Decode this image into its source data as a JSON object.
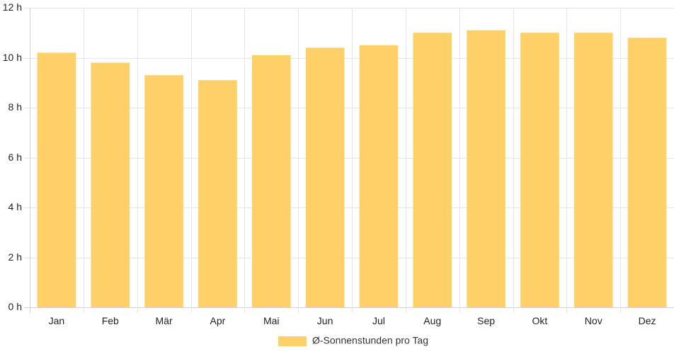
{
  "chart_data": {
    "type": "bar",
    "categories": [
      "Jan",
      "Feb",
      "Mär",
      "Apr",
      "Mai",
      "Jun",
      "Jul",
      "Aug",
      "Sep",
      "Okt",
      "Nov",
      "Dez"
    ],
    "series": [
      {
        "name": "Ø-Sonnenstunden pro Tag",
        "values": [
          10.2,
          9.8,
          9.3,
          9.1,
          10.1,
          10.4,
          10.5,
          11.0,
          11.1,
          11.0,
          11.0,
          10.8
        ],
        "color": "#fdd167"
      }
    ],
    "y_unit_suffix": " h",
    "ylim": [
      0,
      12
    ],
    "y_ticks": [
      0,
      2,
      4,
      6,
      8,
      10,
      12
    ],
    "grid": true,
    "legend_position": "bottom-center"
  }
}
